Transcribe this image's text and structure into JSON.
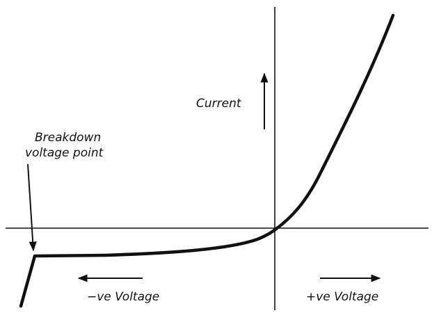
{
  "labels": {
    "current": "Current",
    "breakdown": [
      "Breakdown",
      "voltage point"
    ],
    "negative_voltage": "−ve Voltage",
    "positive_voltage": "+ve Voltage"
  }
}
